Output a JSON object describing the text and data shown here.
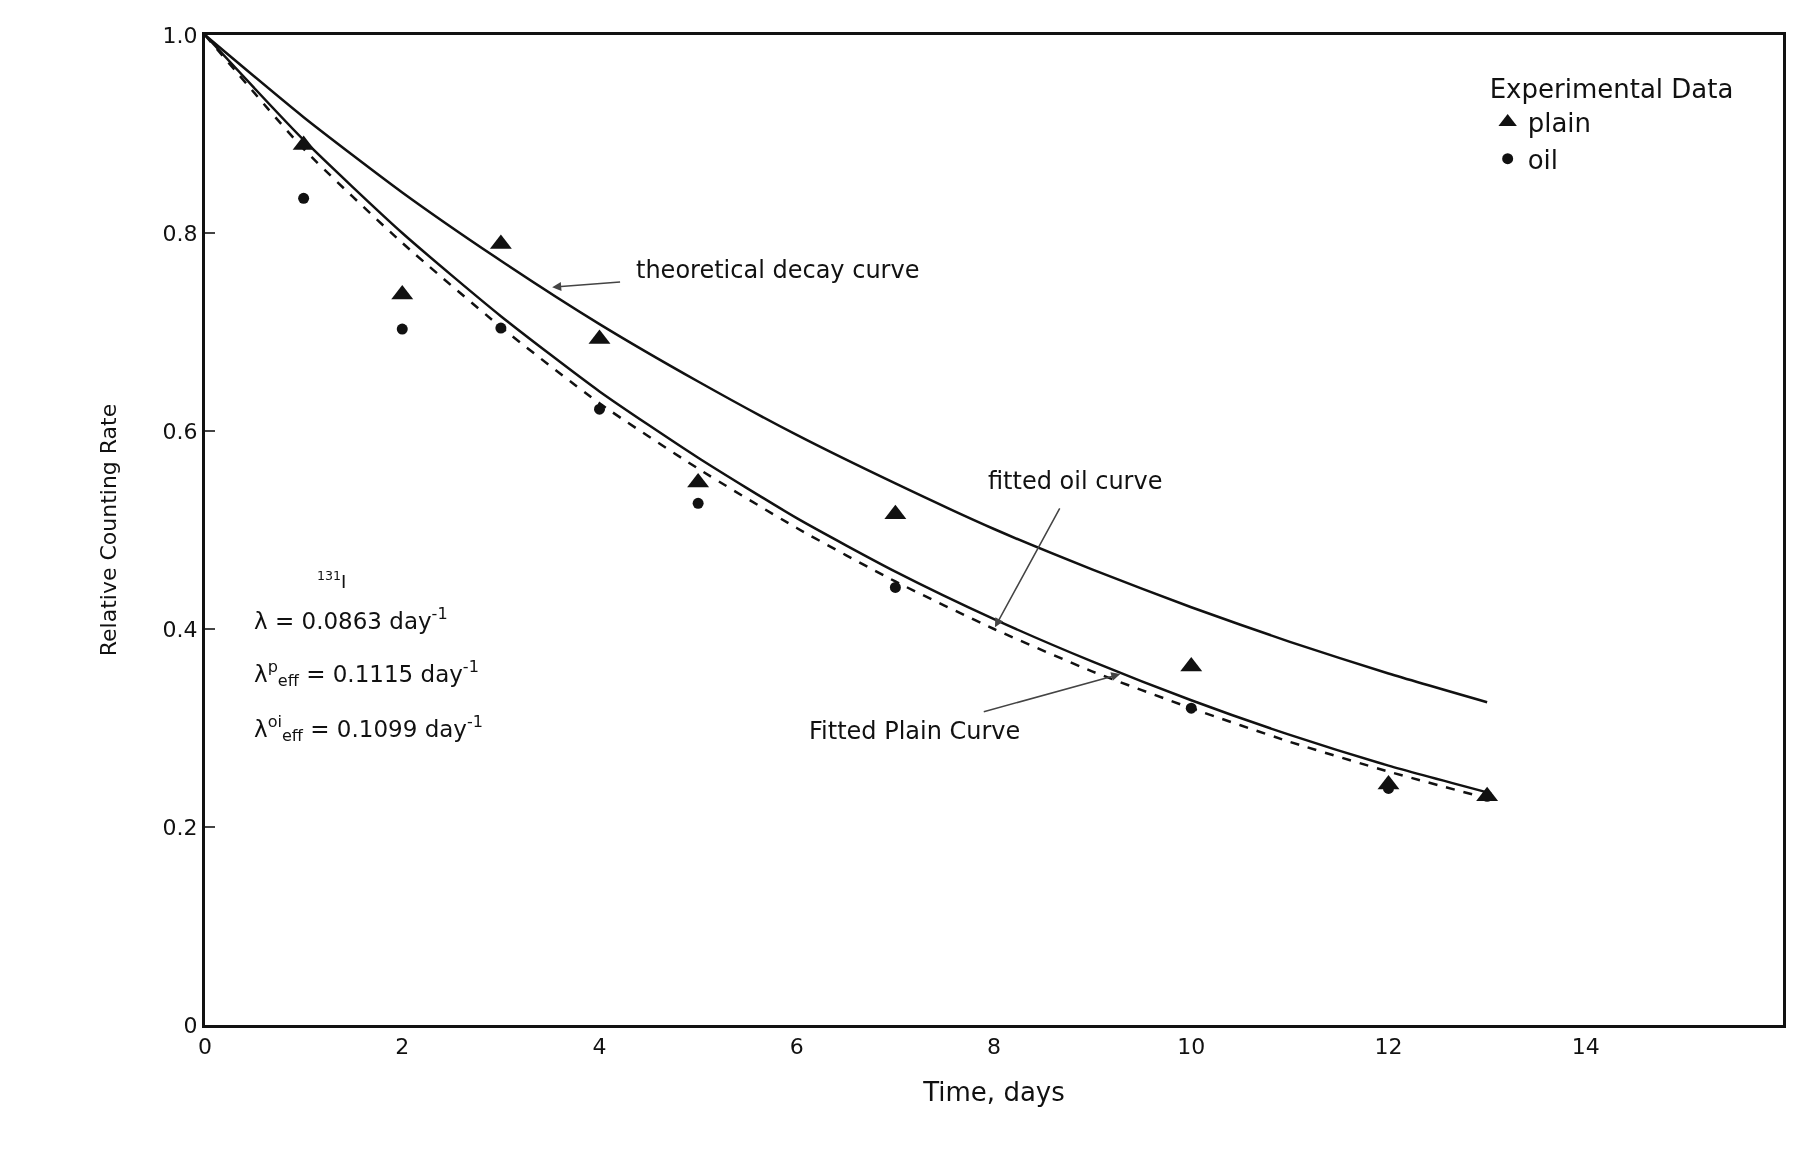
{
  "chart_data": {
    "type": "scatter",
    "xlabel": "Time, days",
    "ylabel": "Relative Counting Rate",
    "legend_title": "Experimental Data",
    "legend": "top right",
    "grid": false,
    "xlim": [
      0,
      16
    ],
    "xticks": [
      0,
      2,
      4,
      6,
      8,
      10,
      12,
      14
    ],
    "ylim": [
      0,
      1
    ],
    "yticks": [
      0,
      0.2,
      0.4,
      0.6,
      0.8,
      {
        "value": 1,
        "label": "1.0"
      }
    ],
    "series": [
      {
        "name": "plain",
        "marker": "triangle",
        "color": "#111111",
        "x": [
          1,
          2,
          3,
          4,
          5,
          7,
          10,
          12,
          13
        ],
        "values": [
          0.889,
          0.738,
          0.789,
          0.693,
          0.548,
          0.516,
          0.362,
          0.243,
          0.231
        ]
      },
      {
        "name": "oil",
        "marker": "circle",
        "color": "#111111",
        "x": [
          1,
          2,
          3,
          4,
          5,
          7,
          10,
          12,
          13
        ],
        "values": [
          0.835,
          0.703,
          0.704,
          0.622,
          0.527,
          0.442,
          0.32,
          0.239,
          0.231
        ]
      },
      {
        "type": "line",
        "marker": "none",
        "line_style": "solid",
        "color": "#111111",
        "x": [
          0,
          1,
          2,
          3,
          4,
          5,
          6,
          7,
          8,
          9,
          10,
          11,
          12,
          13
        ],
        "values": [
          1,
          0.917,
          0.841,
          0.772,
          0.708,
          0.65,
          0.596,
          0.547,
          0.501,
          0.46,
          0.422,
          0.387,
          0.355,
          0.326
        ]
      },
      {
        "type": "line",
        "marker": "none",
        "line_style": "solid",
        "color": "#111111",
        "x": [
          0,
          1,
          2,
          3,
          4,
          5,
          6,
          7,
          8,
          9,
          10,
          11,
          12,
          13
        ],
        "values": [
          1,
          0.894,
          0.8,
          0.716,
          0.64,
          0.573,
          0.512,
          0.458,
          0.41,
          0.367,
          0.328,
          0.293,
          0.262,
          0.235
        ]
      },
      {
        "type": "line",
        "marker": "none",
        "line_style": "dashed",
        "color": "#111111",
        "x": [
          0,
          1,
          2,
          3,
          4,
          5,
          6,
          7,
          8,
          9,
          10,
          11,
          12,
          13
        ],
        "values": [
          1,
          0.885,
          0.79,
          0.705,
          0.628,
          0.562,
          0.502,
          0.448,
          0.4,
          0.357,
          0.32,
          0.286,
          0.256,
          0.229
        ]
      }
    ],
    "annotations": [
      {
        "text": "theoretical decay curve",
        "x": 3.5,
        "y": 0.745
      },
      {
        "text": "fitted oil curve",
        "x": 8,
        "y": 0.4
      },
      {
        "text": "Fitted Plain Curve",
        "x": 9.3,
        "y": 0.355
      },
      "$^{131}$I",
      "λ = 0.0863 day$^{-1}$",
      "λ$^{p}$$_{eff}$ = 0.1115 day$^{-1}$",
      "λ$^{oi}$$_{eff}$ = 0.1099 day$^{-1}$"
    ]
  }
}
